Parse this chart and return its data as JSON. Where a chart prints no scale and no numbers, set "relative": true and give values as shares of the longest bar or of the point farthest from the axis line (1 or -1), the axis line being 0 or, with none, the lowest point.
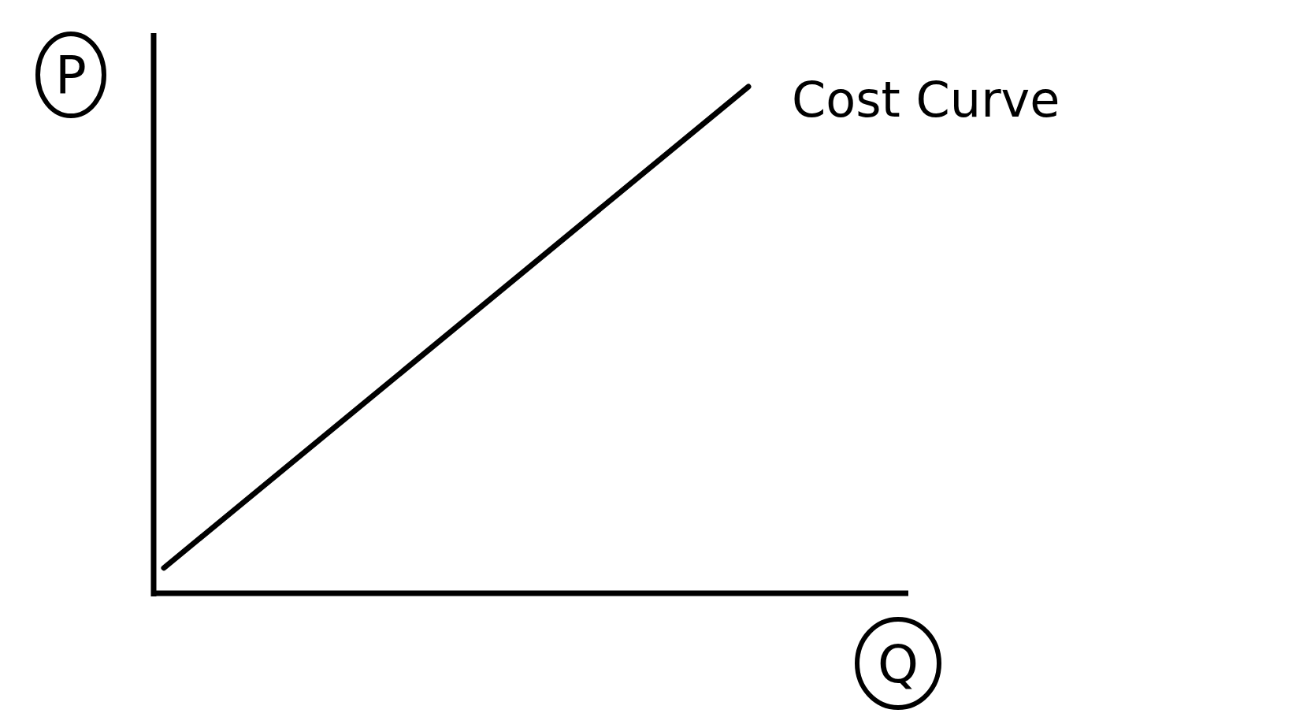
{
  "chart_data": {
    "type": "line",
    "relative": true,
    "xlabel": "Q",
    "ylabel": "P",
    "categories": [
      null,
      null
    ],
    "series": [
      {
        "name": "Cost Curve",
        "color": "#000000",
        "values": [
          0.05,
          1
        ]
      }
    ]
  }
}
